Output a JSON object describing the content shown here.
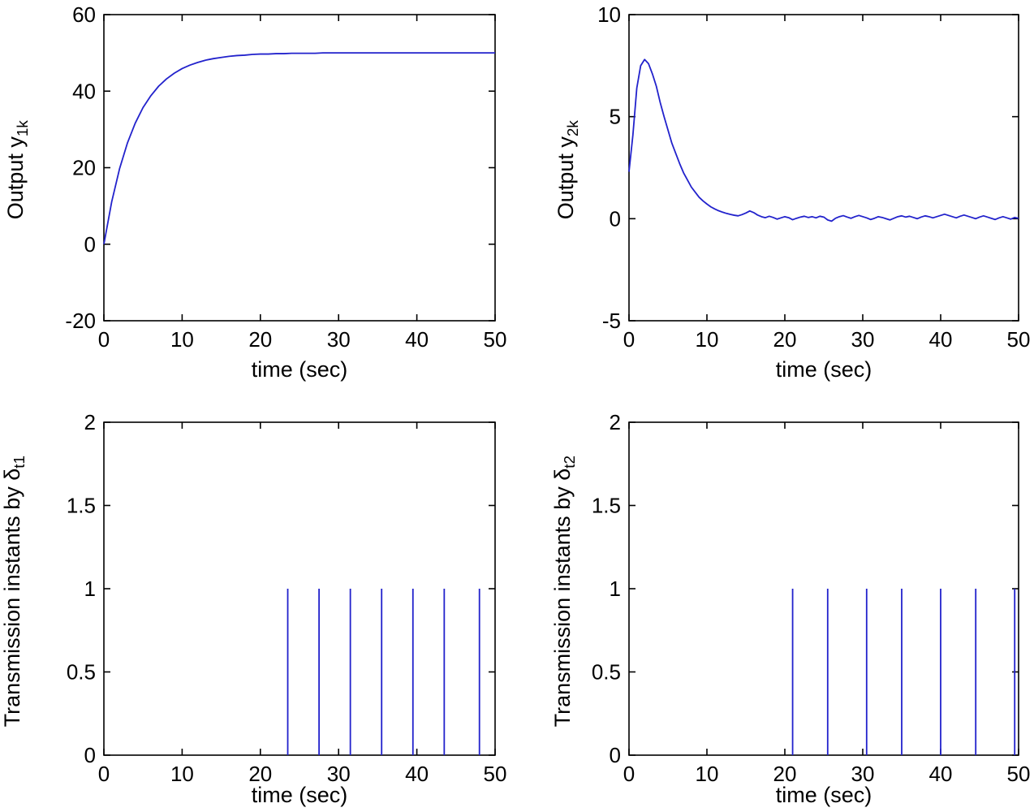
{
  "colors": {
    "background": "#ffffff",
    "axis": "#000000",
    "line": "#2222cc"
  },
  "chart_data": [
    {
      "id": "output-y1k",
      "type": "line",
      "xlabel": "time (sec)",
      "ylabel": "Output y",
      "ylabel_sub": "1k",
      "xlim": [
        0,
        50
      ],
      "ylim": [
        -20,
        60
      ],
      "xticks": [
        0,
        10,
        20,
        30,
        40,
        50
      ],
      "yticks": [
        -20,
        0,
        20,
        40,
        60
      ],
      "x": [
        0,
        1,
        2,
        3,
        4,
        5,
        6,
        7,
        8,
        9,
        10,
        11,
        12,
        13,
        14,
        15,
        16,
        17,
        18,
        19,
        20,
        21,
        22,
        23,
        24,
        25,
        26,
        27,
        28,
        29,
        30,
        31,
        32,
        33,
        34,
        35,
        36,
        37,
        38,
        39,
        40,
        41,
        42,
        43,
        44,
        45,
        46,
        47,
        48,
        49,
        50
      ],
      "y": [
        0,
        11.1,
        19.7,
        26.4,
        31.6,
        35.7,
        38.8,
        41.3,
        43.2,
        44.7,
        45.9,
        46.8,
        47.5,
        48.1,
        48.5,
        48.8,
        49.1,
        49.3,
        49.4,
        49.6,
        49.7,
        49.7,
        49.8,
        49.8,
        49.9,
        49.9,
        49.9,
        49.9,
        50,
        50,
        50,
        50,
        50,
        50,
        50,
        50,
        50,
        50,
        50,
        50,
        50,
        50,
        50,
        50,
        50,
        50,
        50,
        50,
        50,
        50,
        50
      ]
    },
    {
      "id": "output-y2k",
      "type": "line",
      "xlabel": "time (sec)",
      "ylabel": "Output y",
      "ylabel_sub": "2k",
      "xlim": [
        0,
        50
      ],
      "ylim": [
        -5,
        10
      ],
      "xticks": [
        0,
        10,
        20,
        30,
        40,
        50
      ],
      "yticks": [
        -5,
        0,
        5,
        10
      ],
      "x": [
        0,
        0.5,
        1,
        1.5,
        2,
        2.5,
        3,
        3.5,
        4,
        4.5,
        5,
        5.5,
        6,
        6.5,
        7,
        7.5,
        8,
        8.5,
        9,
        9.5,
        10,
        10.5,
        11,
        11.5,
        12,
        12.5,
        13,
        13.5,
        14,
        14.5,
        15,
        15.5,
        16,
        16.5,
        17,
        17.5,
        18,
        18.5,
        19,
        19.5,
        20,
        20.5,
        21,
        21.5,
        22,
        22.5,
        23,
        23.5,
        24,
        24.5,
        25,
        25.5,
        26,
        26.5,
        27,
        27.5,
        28,
        28.5,
        29,
        29.5,
        30,
        30.5,
        31,
        31.5,
        32,
        32.5,
        33,
        33.5,
        34,
        34.5,
        35,
        35.5,
        36,
        36.5,
        37,
        37.5,
        38,
        38.5,
        39,
        39.5,
        40,
        40.5,
        41,
        41.5,
        42,
        42.5,
        43,
        43.5,
        44,
        44.5,
        45,
        45.5,
        46,
        46.5,
        47,
        47.5,
        48,
        48.5,
        49,
        49.5,
        50
      ],
      "y": [
        2.3,
        4.1,
        6.4,
        7.5,
        7.8,
        7.6,
        7.1,
        6.5,
        5.7,
        5.0,
        4.35,
        3.7,
        3.2,
        2.7,
        2.25,
        1.9,
        1.55,
        1.3,
        1.05,
        0.87,
        0.72,
        0.58,
        0.48,
        0.39,
        0.32,
        0.26,
        0.21,
        0.17,
        0.14,
        0.2,
        0.28,
        0.38,
        0.3,
        0.18,
        0.1,
        0.05,
        0.12,
        0.06,
        -0.02,
        0.04,
        0.1,
        0.05,
        -0.05,
        0.02,
        0.08,
        0.12,
        0.06,
        0.1,
        0.04,
        0.12,
        0.08,
        -0.06,
        -0.12,
        0.02,
        0.1,
        0.15,
        0.08,
        0.02,
        0.1,
        0.16,
        0.1,
        0.04,
        -0.04,
        0.02,
        0.1,
        0.06,
        0.0,
        -0.06,
        0.02,
        0.1,
        0.14,
        0.08,
        0.12,
        0.06,
        0.0,
        0.08,
        0.14,
        0.1,
        0.04,
        0.1,
        0.16,
        0.22,
        0.16,
        0.1,
        0.04,
        0.12,
        0.18,
        0.12,
        0.06,
        0.0,
        0.08,
        0.14,
        0.08,
        0.02,
        -0.04,
        0.04,
        0.1,
        0.04,
        -0.02,
        0.06,
        0.02
      ]
    },
    {
      "id": "transmission-instants-delta-t1",
      "type": "stem",
      "xlabel": "time (sec)",
      "ylabel": "Transmission instants by δ",
      "ylabel_sub": "t1",
      "xlim": [
        0,
        50
      ],
      "ylim": [
        0,
        2
      ],
      "xticks": [
        0,
        10,
        20,
        30,
        40,
        50
      ],
      "yticks": [
        0,
        0.5,
        1,
        1.5,
        2
      ],
      "spike_times": [
        23.5,
        27.5,
        31.5,
        35.5,
        39.5,
        43.5,
        48
      ],
      "spike_height": 1
    },
    {
      "id": "transmission-instants-delta-t2",
      "type": "stem",
      "xlabel": "time (sec)",
      "ylabel": "Transmission instants by δ",
      "ylabel_sub": "t2",
      "xlim": [
        0,
        50
      ],
      "ylim": [
        0,
        2
      ],
      "xticks": [
        0,
        10,
        20,
        30,
        40,
        50
      ],
      "yticks": [
        0,
        0.5,
        1,
        1.5,
        2
      ],
      "spike_times": [
        21,
        25.5,
        30.5,
        35,
        40,
        44.5,
        49.5
      ],
      "spike_height": 1
    }
  ]
}
